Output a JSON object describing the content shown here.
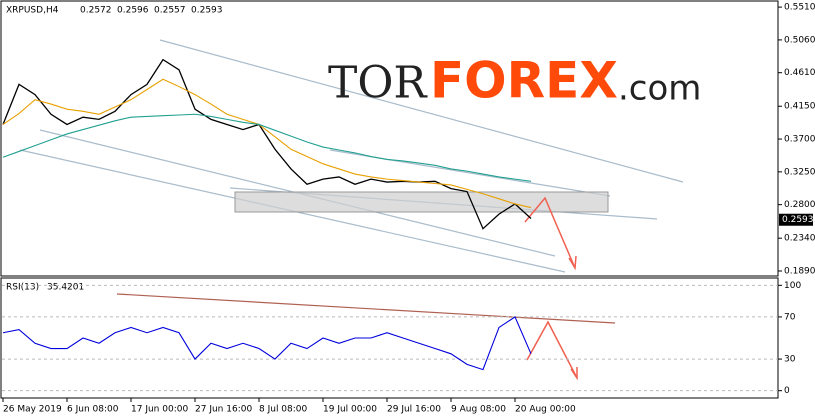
{
  "chart_data": [
    {
      "type": "line",
      "title": "XRPUSD,H4",
      "ohlc": [
        0.2572,
        0.2596,
        0.2557,
        0.2593
      ],
      "last_price": 0.2593,
      "logo": [
        "TOR",
        "FOREX",
        ".com"
      ],
      "categories": [
        "26 May 2019",
        null,
        null,
        null,
        "6 Jun 08:00",
        null,
        null,
        null,
        "17 Jun 00:00",
        null,
        null,
        null,
        "27 Jun 16:00",
        null,
        null,
        null,
        "8 Jul 08:00",
        null,
        null,
        null,
        "19 Jul 00:00",
        null,
        null,
        null,
        "29 Jul 16:00",
        null,
        null,
        null,
        "9 Aug 08:00",
        null,
        null,
        null,
        "20 Aug 00:00",
        null
      ],
      "series": [
        {
          "color": "#000000",
          "values": [
            0.39,
            0.445,
            0.431,
            0.404,
            0.39,
            0.4,
            0.397,
            0.408,
            0.431,
            0.445,
            0.479,
            0.465,
            0.411,
            0.397,
            0.39,
            0.383,
            0.39,
            0.356,
            0.329,
            0.308,
            0.315,
            0.318,
            0.308,
            0.315,
            0.311,
            0.312,
            0.311,
            0.312,
            0.302,
            0.298,
            0.247,
            0.267,
            0.281,
            0.261
          ]
        },
        {
          "color": "#e8a000",
          "values": [
            0.39,
            0.405,
            0.424,
            0.418,
            0.411,
            0.408,
            0.404,
            0.414,
            0.424,
            0.438,
            0.452,
            0.442,
            0.431,
            0.418,
            0.404,
            0.397,
            0.39,
            0.373,
            0.356,
            0.346,
            0.336,
            0.329,
            0.322,
            0.318,
            0.315,
            0.313,
            0.311,
            0.309,
            0.307,
            0.301,
            0.295,
            0.288,
            0.281,
            0.276
          ]
        },
        {
          "color": "#20a090",
          "values": [
            0.345,
            0.353,
            0.361,
            0.369,
            0.377,
            0.383,
            0.389,
            0.395,
            0.4,
            0.401,
            0.402,
            0.403,
            0.404,
            0.401,
            0.397,
            0.393,
            0.39,
            0.382,
            0.374,
            0.366,
            0.359,
            0.355,
            0.351,
            0.346,
            0.342,
            0.34,
            0.337,
            0.334,
            0.329,
            0.326,
            0.322,
            0.318,
            0.315,
            0.312
          ]
        }
      ],
      "ylim": [
        0.1835,
        0.558
      ],
      "yticks": [
        {
          "value": 0.551,
          "label": "0.5510"
        },
        {
          "value": 0.506,
          "label": "0.5060"
        },
        {
          "value": 0.461,
          "label": "0.4610"
        },
        {
          "value": 0.415,
          "label": "0.4150"
        },
        {
          "value": 0.37,
          "label": "0.3700"
        },
        {
          "value": 0.325,
          "label": "0.3250"
        },
        {
          "value": 0.28,
          "label": "0.2800"
        },
        {
          "value": 0.234,
          "label": "0.2340"
        },
        {
          "value": 0.189,
          "label": "0.1890"
        }
      ],
      "grid": false
    },
    {
      "type": "line",
      "title": "RSI(13)",
      "value": 35.4201,
      "series": [
        {
          "color": "#0000dd",
          "values": [
            55,
            58,
            45,
            40,
            40,
            50,
            45,
            55,
            60,
            55,
            60,
            55,
            30,
            45,
            40,
            45,
            40,
            30,
            45,
            40,
            50,
            45,
            50,
            50,
            55,
            50,
            45,
            40,
            35,
            25,
            20,
            60,
            70,
            35
          ]
        }
      ],
      "ylim": [
        -6,
        106
      ],
      "yticks": [
        0,
        30,
        70,
        100
      ],
      "grid": true
    }
  ]
}
